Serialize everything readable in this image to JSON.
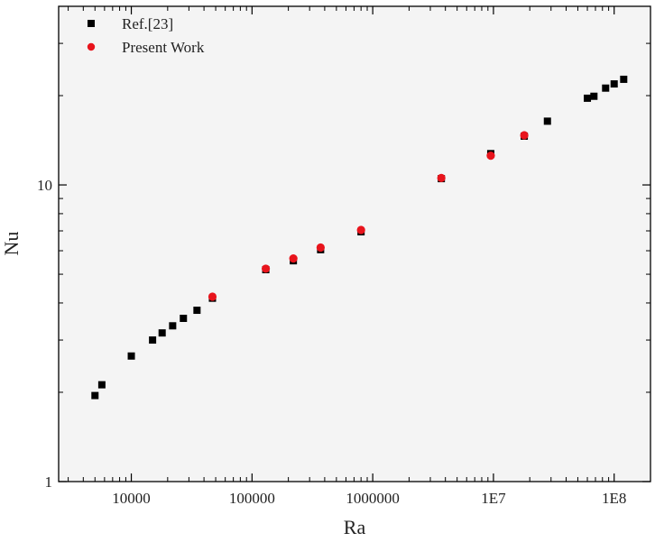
{
  "chart_data": {
    "type": "scatter",
    "xlabel": "Ra",
    "ylabel": "Nu",
    "x_scale": "log",
    "y_scale": "log",
    "xlim": [
      2500,
      200000000
    ],
    "ylim": [
      1,
      40
    ],
    "x_ticks": [
      {
        "value": 10000,
        "label": "10000"
      },
      {
        "value": 100000,
        "label": "100000"
      },
      {
        "value": 1000000,
        "label": "1000000"
      },
      {
        "value": 10000000,
        "label": "1E7"
      },
      {
        "value": 100000000,
        "label": "1E8"
      }
    ],
    "y_ticks": [
      {
        "value": 1,
        "label": "1"
      },
      {
        "value": 10,
        "label": "10"
      }
    ],
    "grid": false,
    "background": "#f4f4f4",
    "legend_position": "top-left",
    "series": [
      {
        "name": "Ref.[23]",
        "marker": "square",
        "color": "#000000",
        "points": [
          {
            "x": 5000,
            "y": 1.95
          },
          {
            "x": 5700,
            "y": 2.12
          },
          {
            "x": 10000,
            "y": 2.65
          },
          {
            "x": 15000,
            "y": 3.0
          },
          {
            "x": 18000,
            "y": 3.17
          },
          {
            "x": 22000,
            "y": 3.35
          },
          {
            "x": 27000,
            "y": 3.55
          },
          {
            "x": 35000,
            "y": 3.78
          },
          {
            "x": 47000,
            "y": 4.15
          },
          {
            "x": 130000,
            "y": 5.18
          },
          {
            "x": 220000,
            "y": 5.55
          },
          {
            "x": 370000,
            "y": 6.05
          },
          {
            "x": 800000,
            "y": 6.95
          },
          {
            "x": 3700000,
            "y": 10.5
          },
          {
            "x": 9500000,
            "y": 12.75
          },
          {
            "x": 18000000,
            "y": 14.6
          },
          {
            "x": 28000000,
            "y": 16.4
          },
          {
            "x": 60000000,
            "y": 19.6
          },
          {
            "x": 68000000,
            "y": 19.9
          },
          {
            "x": 85000000,
            "y": 21.2
          },
          {
            "x": 100000000,
            "y": 21.9
          },
          {
            "x": 120000000,
            "y": 22.7
          }
        ]
      },
      {
        "name": "Present Work",
        "marker": "circle",
        "color": "#e8141c",
        "points": [
          {
            "x": 47000,
            "y": 4.2
          },
          {
            "x": 130000,
            "y": 5.22
          },
          {
            "x": 220000,
            "y": 5.65
          },
          {
            "x": 370000,
            "y": 6.15
          },
          {
            "x": 800000,
            "y": 7.05
          },
          {
            "x": 3700000,
            "y": 10.55
          },
          {
            "x": 9500000,
            "y": 12.55
          },
          {
            "x": 18000000,
            "y": 14.7
          }
        ]
      }
    ]
  }
}
